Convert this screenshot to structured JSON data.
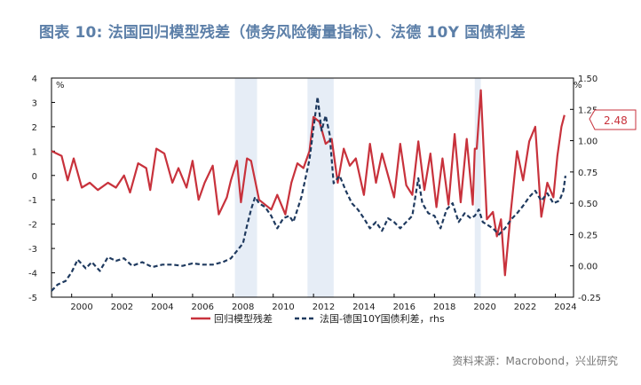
{
  "title": "图表 10: 法国回归模型残差（债务风险衡量指标）、法德 10Y 国债利差",
  "source": "资料来源：Macrobond，兴业研究",
  "callout_label": "2.48",
  "colors": {
    "series1": "#c8323c",
    "series2": "#1f3a5f",
    "shade": "#e6edf6",
    "title": "#5c7fa8"
  },
  "chart_data": {
    "type": "line",
    "title": "图表 10: 法国回归模型残差（债务风险衡量指标）、法德 10Y 国债利差",
    "left_axis": {
      "unit": "%",
      "ylim": [
        -5,
        4
      ],
      "ticks": [
        4,
        3,
        2,
        1,
        0,
        -1,
        -2,
        -3,
        -4,
        -5
      ]
    },
    "right_axis": {
      "unit": "%",
      "ylim": [
        -0.25,
        1.5
      ],
      "ticks": [
        "1.50",
        "1.25",
        "1.00",
        "0.75",
        "0.50",
        "0.25",
        "0.00",
        "-0.25"
      ]
    },
    "x_axis": {
      "xlim": [
        1999,
        2024.9
      ],
      "ticks": [
        "2000",
        "2002",
        "2004",
        "2006",
        "2008",
        "2010",
        "2012",
        "2014",
        "2016",
        "2018",
        "2020",
        "2022",
        "2024"
      ]
    },
    "shaded_periods": [
      [
        2008.1,
        2009.2
      ],
      [
        2011.7,
        2013.0
      ],
      [
        2020.0,
        2020.3
      ]
    ],
    "legend": "bottom",
    "series": [
      {
        "name": "回归模型残差",
        "axis": "left",
        "style": "solid",
        "x": [
          1999.0,
          1999.5,
          1999.8,
          2000.1,
          2000.5,
          2000.9,
          2001.3,
          2001.8,
          2002.2,
          2002.6,
          2002.9,
          2003.3,
          2003.7,
          2003.9,
          2004.2,
          2004.6,
          2005.0,
          2005.3,
          2005.7,
          2006.0,
          2006.3,
          2006.6,
          2007.0,
          2007.3,
          2007.7,
          2007.9,
          2008.2,
          2008.4,
          2008.7,
          2008.9,
          2009.3,
          2009.6,
          2009.9,
          2010.2,
          2010.6,
          2010.9,
          2011.2,
          2011.5,
          2011.8,
          2012.0,
          2012.3,
          2012.6,
          2012.9,
          2013.2,
          2013.5,
          2013.8,
          2014.1,
          2014.5,
          2014.8,
          2015.1,
          2015.4,
          2015.7,
          2016.0,
          2016.3,
          2016.6,
          2016.9,
          2017.2,
          2017.5,
          2017.8,
          2018.1,
          2018.4,
          2018.7,
          2019.0,
          2019.3,
          2019.6,
          2019.9,
          2020.0,
          2020.1,
          2020.3,
          2020.4,
          2020.6,
          2020.9,
          2021.1,
          2021.3,
          2021.5,
          2021.8,
          2022.1,
          2022.4,
          2022.7,
          2023.0,
          2023.3,
          2023.6,
          2023.9,
          2024.1,
          2024.3,
          2024.45
        ],
        "values": [
          1.0,
          0.8,
          -0.2,
          0.7,
          -0.5,
          -0.3,
          -0.6,
          -0.3,
          -0.5,
          0.0,
          -0.7,
          0.5,
          0.3,
          -0.6,
          1.1,
          0.9,
          -0.3,
          0.3,
          -0.5,
          0.6,
          -1.0,
          -0.3,
          0.4,
          -1.6,
          -0.9,
          -0.2,
          0.6,
          -1.1,
          0.7,
          0.6,
          -1.0,
          -1.2,
          -1.4,
          -0.8,
          -1.6,
          -0.3,
          0.5,
          0.3,
          1.0,
          2.4,
          2.2,
          1.3,
          1.5,
          -0.3,
          1.1,
          0.4,
          0.7,
          -0.8,
          1.3,
          -0.3,
          0.9,
          0.0,
          -0.9,
          1.3,
          -0.4,
          -0.8,
          1.4,
          -0.6,
          0.9,
          -1.3,
          0.7,
          -1.2,
          1.7,
          -1.1,
          1.5,
          -1.2,
          1.1,
          1.1,
          3.5,
          1.8,
          -1.8,
          -1.5,
          -2.5,
          -1.8,
          -4.1,
          -1.4,
          1.0,
          -0.2,
          1.4,
          2.0,
          -1.7,
          -0.3,
          -0.9,
          0.8,
          2.0,
          2.48
        ]
      },
      {
        "name": "法国-德国10Y国债利差，rhs",
        "axis": "right",
        "style": "dashed",
        "x": [
          1999.0,
          1999.3,
          1999.7,
          2000.0,
          2000.3,
          2000.7,
          2001.0,
          2001.4,
          2001.8,
          2002.2,
          2002.6,
          2003.0,
          2003.5,
          2004.0,
          2004.5,
          2005.0,
          2005.5,
          2006.0,
          2006.5,
          2007.0,
          2007.5,
          2007.9,
          2008.2,
          2008.5,
          2008.7,
          2008.9,
          2009.1,
          2009.3,
          2009.6,
          2009.9,
          2010.2,
          2010.5,
          2010.8,
          2011.0,
          2011.2,
          2011.4,
          2011.6,
          2011.8,
          2012.0,
          2012.2,
          2012.4,
          2012.6,
          2012.8,
          2013.0,
          2013.3,
          2013.6,
          2013.9,
          2014.2,
          2014.5,
          2014.8,
          2015.1,
          2015.4,
          2015.7,
          2016.0,
          2016.3,
          2016.6,
          2016.9,
          2017.2,
          2017.4,
          2017.7,
          2018.0,
          2018.3,
          2018.6,
          2018.9,
          2019.2,
          2019.5,
          2019.8,
          2020.0,
          2020.2,
          2020.4,
          2020.6,
          2020.9,
          2021.2,
          2021.5,
          2021.8,
          2022.1,
          2022.4,
          2022.7,
          2023.0,
          2023.3,
          2023.6,
          2023.9,
          2024.2,
          2024.4,
          2024.5
        ],
        "values": [
          -0.2,
          -0.15,
          -0.12,
          -0.05,
          0.05,
          -0.02,
          0.03,
          -0.04,
          0.07,
          0.04,
          0.06,
          0.0,
          0.03,
          -0.01,
          0.01,
          0.01,
          0.0,
          0.02,
          0.01,
          0.01,
          0.03,
          0.06,
          0.12,
          0.18,
          0.32,
          0.45,
          0.55,
          0.5,
          0.47,
          0.4,
          0.3,
          0.38,
          0.4,
          0.35,
          0.45,
          0.55,
          0.7,
          0.85,
          1.1,
          1.35,
          1.08,
          1.2,
          1.05,
          0.66,
          0.72,
          0.6,
          0.5,
          0.45,
          0.38,
          0.3,
          0.35,
          0.28,
          0.38,
          0.35,
          0.3,
          0.35,
          0.4,
          0.7,
          0.5,
          0.42,
          0.4,
          0.3,
          0.45,
          0.5,
          0.35,
          0.42,
          0.38,
          0.4,
          0.45,
          0.35,
          0.33,
          0.3,
          0.25,
          0.3,
          0.37,
          0.42,
          0.48,
          0.55,
          0.6,
          0.52,
          0.58,
          0.5,
          0.52,
          0.6,
          0.72
        ]
      }
    ]
  }
}
